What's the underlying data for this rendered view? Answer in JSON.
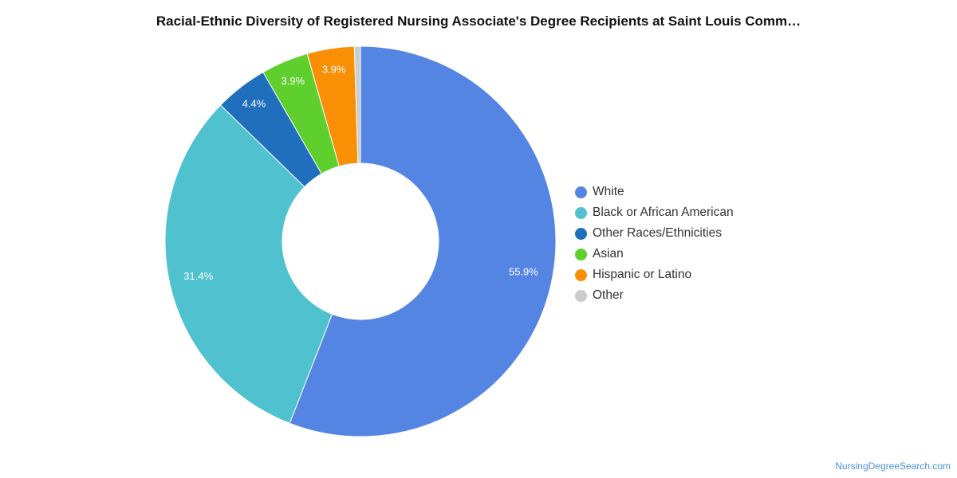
{
  "title": "Racial-Ethnic Diversity of Registered Nursing Associate's Degree Recipients at Saint Louis Comm…",
  "footer": "NursingDegreeSearch.com",
  "chart_data": {
    "type": "pie",
    "variant": "donut",
    "title": "Racial-Ethnic Diversity of Registered Nursing Associate's Degree Recipients at Saint Louis Comm…",
    "legend_position": "right",
    "slices": [
      {
        "name": "White",
        "value": 55.9,
        "label": "55.9%",
        "color": "#5585e3"
      },
      {
        "name": "Black or African American",
        "value": 31.4,
        "label": "31.4%",
        "color": "#50c1ce"
      },
      {
        "name": "Other Races/Ethnicities",
        "value": 4.4,
        "label": "4.4%",
        "color": "#1f6fbd"
      },
      {
        "name": "Asian",
        "value": 3.9,
        "label": "3.9%",
        "color": "#5fcf2e"
      },
      {
        "name": "Hispanic or Latino",
        "value": 3.9,
        "label": "3.9%",
        "color": "#f88f05"
      },
      {
        "name": "Other",
        "value": 0.5,
        "label": "",
        "color": "#cccccc"
      }
    ]
  }
}
